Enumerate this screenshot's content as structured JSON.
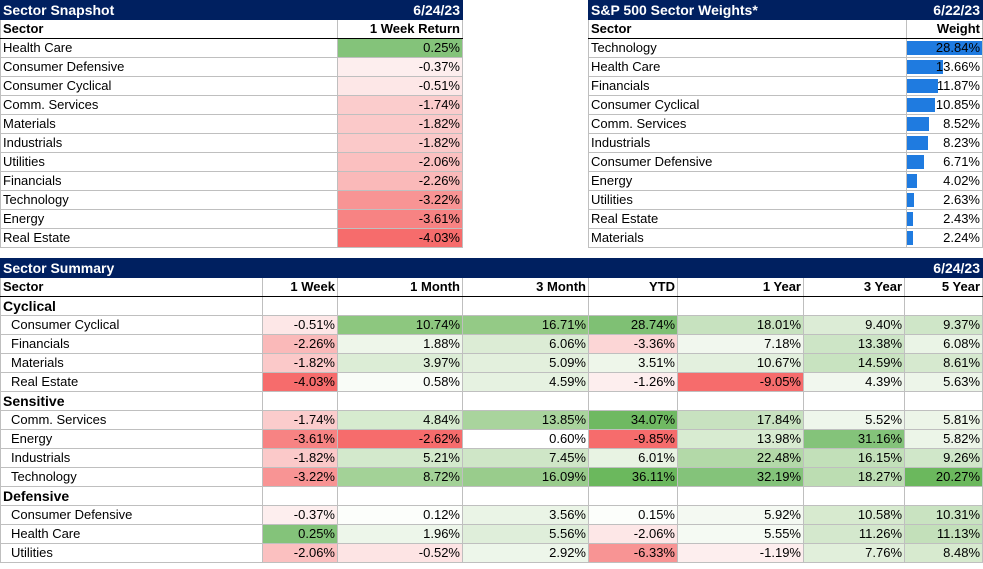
{
  "snapshot": {
    "title": "Sector Snapshot",
    "date": "6/24/23",
    "col_sector": "Sector",
    "col_return": "1 Week Return",
    "rows": [
      {
        "sector": "Health Care",
        "ret": "0.25%",
        "color": "#84c37a"
      },
      {
        "sector": "Consumer Defensive",
        "ret": "-0.37%",
        "color": "#fdeeee"
      },
      {
        "sector": "Consumer Cyclical",
        "ret": "-0.51%",
        "color": "#fde7e7"
      },
      {
        "sector": "Comm. Services",
        "ret": "-1.74%",
        "color": "#fbcccc"
      },
      {
        "sector": "Materials",
        "ret": "-1.82%",
        "color": "#fbc9c9"
      },
      {
        "sector": "Industrials",
        "ret": "-1.82%",
        "color": "#fbc9c9"
      },
      {
        "sector": "Utilities",
        "ret": "-2.06%",
        "color": "#fbc0c0"
      },
      {
        "sector": "Financials",
        "ret": "-2.26%",
        "color": "#fab9b9"
      },
      {
        "sector": "Technology",
        "ret": "-3.22%",
        "color": "#f89494"
      },
      {
        "sector": "Energy",
        "ret": "-3.61%",
        "color": "#f78383"
      },
      {
        "sector": "Real Estate",
        "ret": "-4.03%",
        "color": "#f66c6c"
      }
    ]
  },
  "weights": {
    "title": "S&P 500 Sector Weights*",
    "date": "6/22/23",
    "col_sector": "Sector",
    "col_weight": "Weight",
    "rows": [
      {
        "sector": "Technology",
        "weight": "28.84%",
        "value": 28.84
      },
      {
        "sector": "Health Care",
        "weight": "13.66%",
        "value": 13.66
      },
      {
        "sector": "Financials",
        "weight": "11.87%",
        "value": 11.87
      },
      {
        "sector": "Consumer Cyclical",
        "weight": "10.85%",
        "value": 10.85
      },
      {
        "sector": "Comm. Services",
        "weight": "8.52%",
        "value": 8.52
      },
      {
        "sector": "Industrials",
        "weight": "8.23%",
        "value": 8.23
      },
      {
        "sector": "Consumer Defensive",
        "weight": "6.71%",
        "value": 6.71
      },
      {
        "sector": "Energy",
        "weight": "4.02%",
        "value": 4.02
      },
      {
        "sector": "Utilities",
        "weight": "2.63%",
        "value": 2.63
      },
      {
        "sector": "Real Estate",
        "weight": "2.43%",
        "value": 2.43
      },
      {
        "sector": "Materials",
        "weight": "2.24%",
        "value": 2.24
      }
    ]
  },
  "summary": {
    "title": "Sector Summary",
    "date": "6/24/23",
    "headers": [
      "Sector",
      "1 Week",
      "1 Month",
      "3 Month",
      "YTD",
      "1 Year",
      "3 Year",
      "5 Year"
    ],
    "groups": [
      {
        "name": "Cyclical",
        "rows": [
          {
            "sector": "Consumer Cyclical",
            "cells": [
              [
                "-0.51%",
                "#fde7e7"
              ],
              [
                "10.74%",
                "#8dc77f"
              ],
              [
                "16.71%",
                "#94ca86"
              ],
              [
                "28.74%",
                "#7fc074"
              ],
              [
                "18.01%",
                "#c7e2bf"
              ],
              [
                "9.40%",
                "#dcecd6"
              ],
              [
                "9.37%",
                "#cfe6c8"
              ]
            ]
          },
          {
            "sector": "Financials",
            "cells": [
              [
                "-2.26%",
                "#fab9b9"
              ],
              [
                "1.88%",
                "#eef6ea"
              ],
              [
                "6.06%",
                "#dcecd5"
              ],
              [
                "-3.36%",
                "#fcd6d6"
              ],
              [
                "7.18%",
                "#f1f7ee"
              ],
              [
                "13.38%",
                "#cde5c6"
              ],
              [
                "6.08%",
                "#eaf4e6"
              ]
            ]
          },
          {
            "sector": "Materials",
            "cells": [
              [
                "-1.82%",
                "#fbc9c9"
              ],
              [
                "3.97%",
                "#dcedd6"
              ],
              [
                "5.09%",
                "#e3f0dd"
              ],
              [
                "3.51%",
                "#eef6ea"
              ],
              [
                "10.67%",
                "#e3f0de"
              ],
              [
                "14.59%",
                "#c8e3c0"
              ],
              [
                "8.61%",
                "#d6e9cf"
              ]
            ]
          },
          {
            "sector": "Real Estate",
            "cells": [
              [
                "-4.03%",
                "#f66c6c"
              ],
              [
                "0.58%",
                "#f9fcf7"
              ],
              [
                "4.59%",
                "#e6f2e1"
              ],
              [
                "-1.26%",
                "#fdeeee"
              ],
              [
                "-9.05%",
                "#f66c6c"
              ],
              [
                "4.39%",
                "#f1f7ee"
              ],
              [
                "5.63%",
                "#edf5e9"
              ]
            ]
          }
        ]
      },
      {
        "name": "Sensitive",
        "rows": [
          {
            "sector": "Comm. Services",
            "cells": [
              [
                "-1.74%",
                "#fbcccc"
              ],
              [
                "4.84%",
                "#d6ebcf"
              ],
              [
                "13.85%",
                "#a9d49d"
              ],
              [
                "34.07%",
                "#6fb962"
              ],
              [
                "17.84%",
                "#c8e2c0"
              ],
              [
                "5.52%",
                "#eef6eb"
              ],
              [
                "5.81%",
                "#ecf5e8"
              ]
            ]
          },
          {
            "sector": "Energy",
            "cells": [
              [
                "-3.61%",
                "#f78383"
              ],
              [
                "-2.62%",
                "#f66c6c"
              ],
              [
                "0.60%",
                "#ffffff"
              ],
              [
                "-9.85%",
                "#f66c6c"
              ],
              [
                "13.98%",
                "#d8ebd1"
              ],
              [
                "31.16%",
                "#84c37a"
              ],
              [
                "5.82%",
                "#ecf5e8"
              ]
            ]
          },
          {
            "sector": "Industrials",
            "cells": [
              [
                "-1.82%",
                "#fbc9c9"
              ],
              [
                "5.21%",
                "#d3e9cc"
              ],
              [
                "7.45%",
                "#cfe6c7"
              ],
              [
                "6.01%",
                "#e8f3e3"
              ],
              [
                "22.48%",
                "#b3d9a8"
              ],
              [
                "16.15%",
                "#c2e0b9"
              ],
              [
                "9.26%",
                "#d0e7c9"
              ]
            ]
          },
          {
            "sector": "Technology",
            "cells": [
              [
                "-3.22%",
                "#f89494"
              ],
              [
                "8.72%",
                "#a3d297"
              ],
              [
                "16.09%",
                "#99cc8c"
              ],
              [
                "36.11%",
                "#6bb85d"
              ],
              [
                "32.19%",
                "#84c37a"
              ],
              [
                "18.27%",
                "#bcddb2"
              ],
              [
                "20.27%",
                "#6bb85d"
              ]
            ]
          }
        ]
      },
      {
        "name": "Defensive",
        "rows": [
          {
            "sector": "Consumer Defensive",
            "cells": [
              [
                "-0.37%",
                "#fdeeee"
              ],
              [
                "0.12%",
                "#fcfefb"
              ],
              [
                "3.56%",
                "#eaf4e6"
              ],
              [
                "0.15%",
                "#fcfefb"
              ],
              [
                "5.92%",
                "#f4f9f2"
              ],
              [
                "10.58%",
                "#d7eacf"
              ],
              [
                "10.31%",
                "#c9e3c1"
              ]
            ]
          },
          {
            "sector": "Health Care",
            "cells": [
              [
                "0.25%",
                "#84c37a"
              ],
              [
                "1.96%",
                "#edf6ea"
              ],
              [
                "5.56%",
                "#dfeeda"
              ],
              [
                "-2.06%",
                "#fde7e7"
              ],
              [
                "5.55%",
                "#f5faf3"
              ],
              [
                "11.26%",
                "#d4e8cd"
              ],
              [
                "11.13%",
                "#c3e0ba"
              ]
            ]
          },
          {
            "sector": "Utilities",
            "cells": [
              [
                "-2.06%",
                "#fbc0c0"
              ],
              [
                "-0.52%",
                "#fde4e4"
              ],
              [
                "2.92%",
                "#edf6ea"
              ],
              [
                "-6.33%",
                "#f89494"
              ],
              [
                "-1.19%",
                "#fdeeee"
              ],
              [
                "7.76%",
                "#e1efdb"
              ],
              [
                "8.48%",
                "#d7eacf"
              ]
            ]
          }
        ]
      }
    ]
  }
}
